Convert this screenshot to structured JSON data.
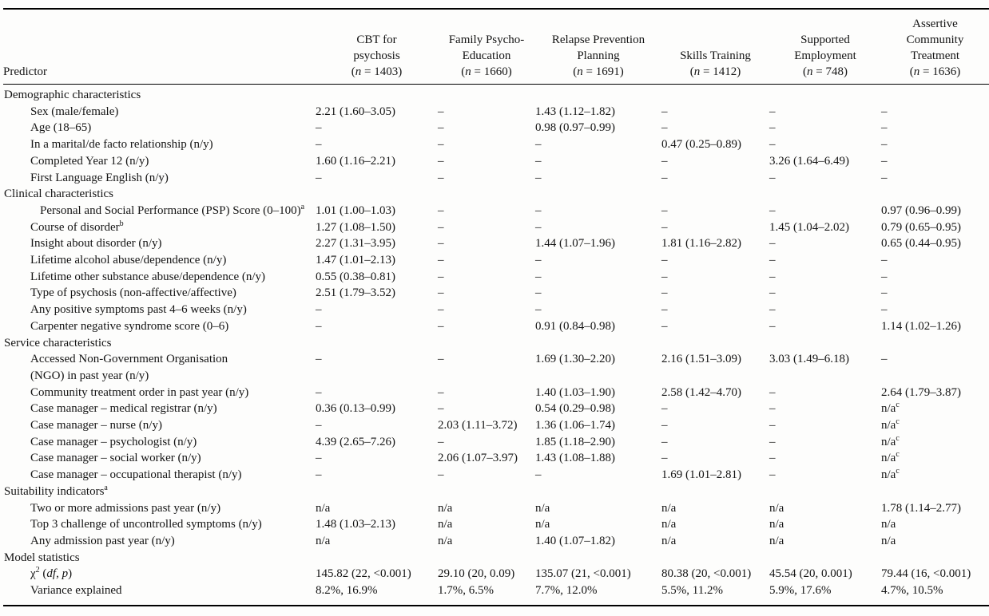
{
  "table": {
    "col0_header": "Predictor",
    "columns": [
      {
        "lines": [
          "CBT for",
          "psychosis"
        ],
        "n": "1403"
      },
      {
        "lines": [
          "Family Psycho-",
          "Education"
        ],
        "n": "1660"
      },
      {
        "lines": [
          "Relapse Prevention",
          "Planning"
        ],
        "n": "1691"
      },
      {
        "lines": [
          "Skills Training"
        ],
        "n": "1412"
      },
      {
        "lines": [
          "Supported",
          "Employment"
        ],
        "n": "748"
      },
      {
        "lines": [
          "Assertive",
          "Community",
          "Treatment"
        ],
        "n": "1636"
      }
    ],
    "rows": [
      {
        "type": "section",
        "label": "Demographic characteristics"
      },
      {
        "type": "item",
        "label": "Sex (male/female)",
        "values": [
          "2.21 (1.60–3.05)",
          "–",
          "1.43 (1.12–1.82)",
          "–",
          "–",
          "–"
        ]
      },
      {
        "type": "item",
        "label": "Age (18–65)",
        "values": [
          "–",
          "–",
          "0.98 (0.97–0.99)",
          "–",
          "–",
          "–"
        ]
      },
      {
        "type": "item",
        "label": "In a marital/de facto relationship (n/y)",
        "values": [
          "–",
          "–",
          "–",
          "0.47 (0.25–0.89)",
          "–",
          "–"
        ]
      },
      {
        "type": "item",
        "label": "Completed Year 12 (n/y)",
        "values": [
          "1.60 (1.16–2.21)",
          "–",
          "–",
          "–",
          "3.26 (1.64–6.49)",
          "–"
        ]
      },
      {
        "type": "item",
        "label": "First Language English (n/y)",
        "values": [
          "–",
          "–",
          "–",
          "–",
          "–",
          "–"
        ]
      },
      {
        "type": "section",
        "label": "Clinical characteristics"
      },
      {
        "type": "item",
        "indent": 2,
        "label": "Personal and Social Performance (PSP) Score (0–100)^a",
        "values": [
          "1.01 (1.00–1.03)",
          "–",
          "–",
          "–",
          "–",
          "0.97 (0.96–0.99)"
        ]
      },
      {
        "type": "item",
        "label": "Course of disorder^b",
        "values": [
          "1.27 (1.08–1.50)",
          "–",
          "–",
          "–",
          "1.45 (1.04–2.02)",
          "0.79 (0.65–0.95)"
        ]
      },
      {
        "type": "item",
        "label": "Insight about disorder (n/y)",
        "values": [
          "2.27 (1.31–3.95)",
          "–",
          "1.44 (1.07–1.96)",
          "1.81 (1.16–2.82)",
          "–",
          "0.65 (0.44–0.95)"
        ]
      },
      {
        "type": "item",
        "label": "Lifetime alcohol abuse/dependence (n/y)",
        "values": [
          "1.47 (1.01–2.13)",
          "–",
          "–",
          "–",
          "–",
          "–"
        ]
      },
      {
        "type": "item",
        "label": "Lifetime other substance abuse/dependence (n/y)",
        "values": [
          "0.55 (0.38–0.81)",
          "–",
          "–",
          "–",
          "–",
          "–"
        ]
      },
      {
        "type": "item",
        "label": "Type of psychosis (non-affective/affective)",
        "values": [
          "2.51 (1.79–3.52)",
          "–",
          "–",
          "–",
          "–",
          "–"
        ]
      },
      {
        "type": "item",
        "label": "Any positive symptoms past 4–6 weeks (n/y)",
        "values": [
          "–",
          "–",
          "–",
          "–",
          "–",
          "–"
        ]
      },
      {
        "type": "item",
        "label": "Carpenter negative syndrome score (0–6)",
        "values": [
          "–",
          "–",
          "0.91 (0.84–0.98)",
          "–",
          "–",
          "1.14 (1.02–1.26)"
        ]
      },
      {
        "type": "section",
        "label": "Service characteristics"
      },
      {
        "type": "item",
        "label": "Accessed Non-Government Organisation\n(NGO) in past year (n/y)",
        "values": [
          "–",
          "–",
          "1.69 (1.30–2.20)",
          "2.16 (1.51–3.09)",
          "3.03 (1.49–6.18)",
          "–"
        ]
      },
      {
        "type": "item",
        "label": "Community treatment order in past year (n/y)",
        "values": [
          "–",
          "–",
          "1.40 (1.03–1.90)",
          "2.58 (1.42–4.70)",
          "–",
          "2.64 (1.79–3.87)"
        ]
      },
      {
        "type": "item",
        "label": "Case manager – medical registrar (n/y)",
        "values": [
          "0.36 (0.13–0.99)",
          "–",
          "0.54 (0.29–0.98)",
          "–",
          "–",
          "n/a^c"
        ]
      },
      {
        "type": "item",
        "label": "Case manager – nurse (n/y)",
        "values": [
          "–",
          "2.03 (1.11–3.72)",
          "1.36 (1.06–1.74)",
          "–",
          "–",
          "n/a^c"
        ]
      },
      {
        "type": "item",
        "label": "Case manager – psychologist (n/y)",
        "values": [
          "4.39 (2.65–7.26)",
          "–",
          "1.85 (1.18–2.90)",
          "–",
          "–",
          "n/a^c"
        ]
      },
      {
        "type": "item",
        "label": "Case manager – social worker (n/y)",
        "values": [
          "–",
          "2.06 (1.07–3.97)",
          "1.43 (1.08–1.88)",
          "–",
          "–",
          "n/a^c"
        ]
      },
      {
        "type": "item",
        "label": "Case manager – occupational therapist (n/y)",
        "values": [
          "–",
          "–",
          "–",
          "1.69 (1.01–2.81)",
          "–",
          "n/a^c"
        ]
      },
      {
        "type": "section",
        "label": "Suitability indicators^a"
      },
      {
        "type": "item",
        "label": "Two or more admissions past year (n/y)",
        "values": [
          "n/a",
          "n/a",
          "n/a",
          "n/a",
          "n/a",
          "1.78 (1.14–2.77)"
        ]
      },
      {
        "type": "item",
        "label": "Top 3 challenge of uncontrolled symptoms (n/y)",
        "values": [
          "1.48 (1.03–2.13)",
          "n/a",
          "n/a",
          "n/a",
          "n/a",
          "n/a"
        ]
      },
      {
        "type": "item",
        "label": "Any admission past year (n/y)",
        "values": [
          "n/a",
          "n/a",
          "1.40 (1.07–1.82)",
          "n/a",
          "n/a",
          "n/a"
        ]
      },
      {
        "type": "section",
        "label": "Model statistics"
      },
      {
        "type": "item",
        "label": "χ^2 (*df*, *p*)",
        "values": [
          "145.82 (22, <0.001)",
          "29.10 (20, 0.09)",
          "135.07 (21, <0.001)",
          "80.38 (20, <0.001)",
          "45.54 (20, 0.001)",
          "79.44 (16, <0.001)"
        ]
      },
      {
        "type": "item",
        "label": "Variance explained",
        "values": [
          "8.2%, 16.9%",
          "1.7%, 6.5%",
          "7.7%, 12.0%",
          "5.5%, 11.2%",
          "5.9%, 17.6%",
          "4.7%, 10.5%"
        ]
      }
    ]
  }
}
